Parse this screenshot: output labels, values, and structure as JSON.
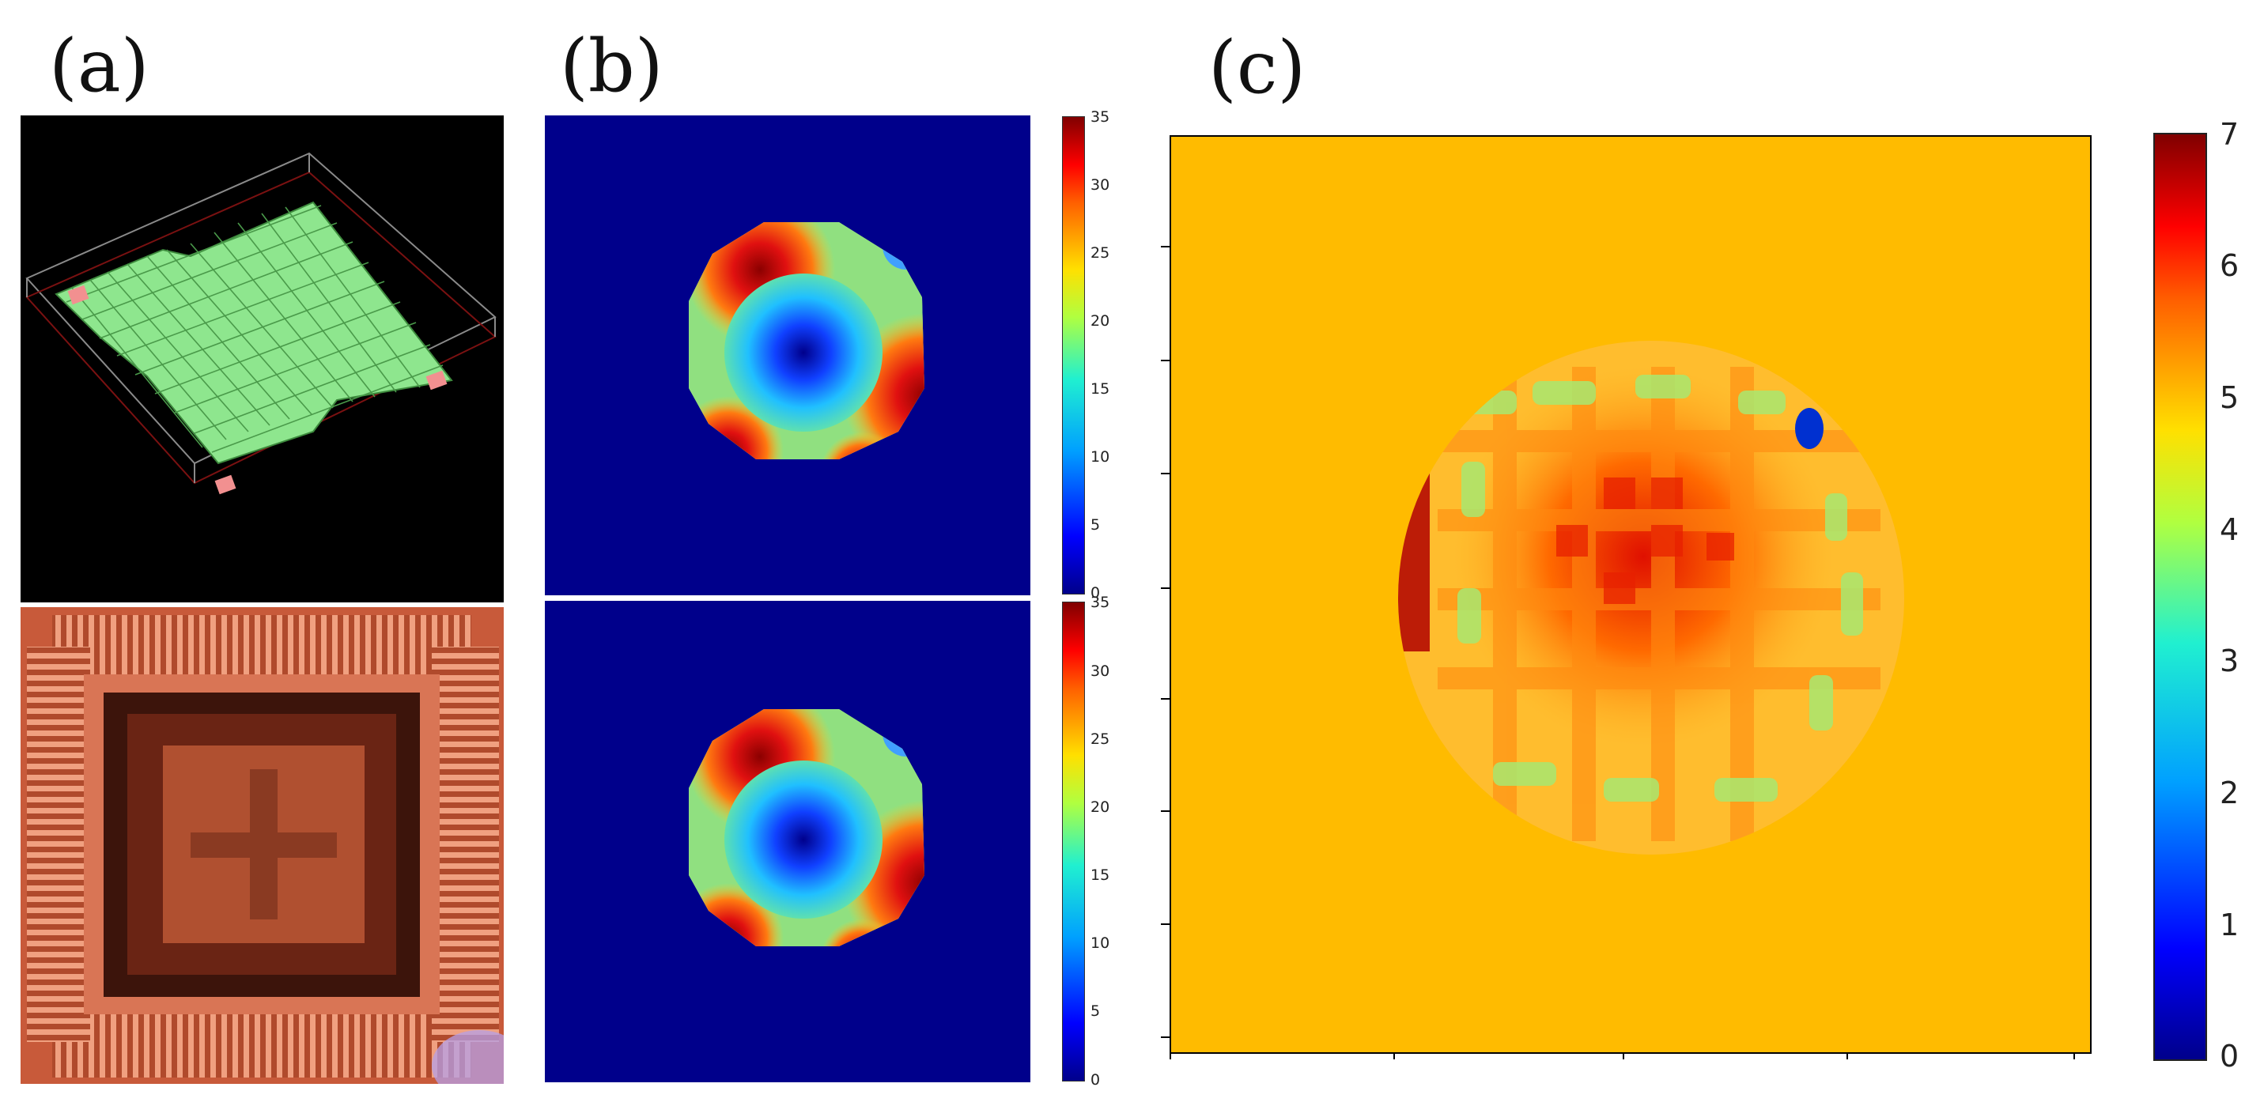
{
  "figure": {
    "panels": [
      {
        "id": "a",
        "label": "(a)"
      },
      {
        "id": "b",
        "label": "(b)"
      },
      {
        "id": "c",
        "label": "(c)"
      }
    ]
  },
  "colormap": "jet",
  "colors": {
    "panel_a_background": "#000000",
    "mesh_surface": "#8ee68e",
    "mesh_lines": "#4a9a4a",
    "corner_pads": "#f29090",
    "chip_copper": "#d56b4a",
    "panel_b_background": "#00008b",
    "panel_c_background": "#ffbb00"
  },
  "colorbars": {
    "b_top": {
      "ticks": [
        "35",
        "30",
        "25",
        "20",
        "15",
        "10",
        "5",
        "0"
      ]
    },
    "b_bottom": {
      "ticks": [
        "35",
        "30",
        "25",
        "20",
        "15",
        "10",
        "5",
        "0"
      ]
    },
    "c": {
      "ticks": [
        "7",
        "6",
        "5",
        "4",
        "3",
        "2",
        "1",
        "0"
      ]
    }
  },
  "icons": [
    "mesh-3d-render",
    "chip-package-photo",
    "contour-map",
    "heatmap"
  ]
}
